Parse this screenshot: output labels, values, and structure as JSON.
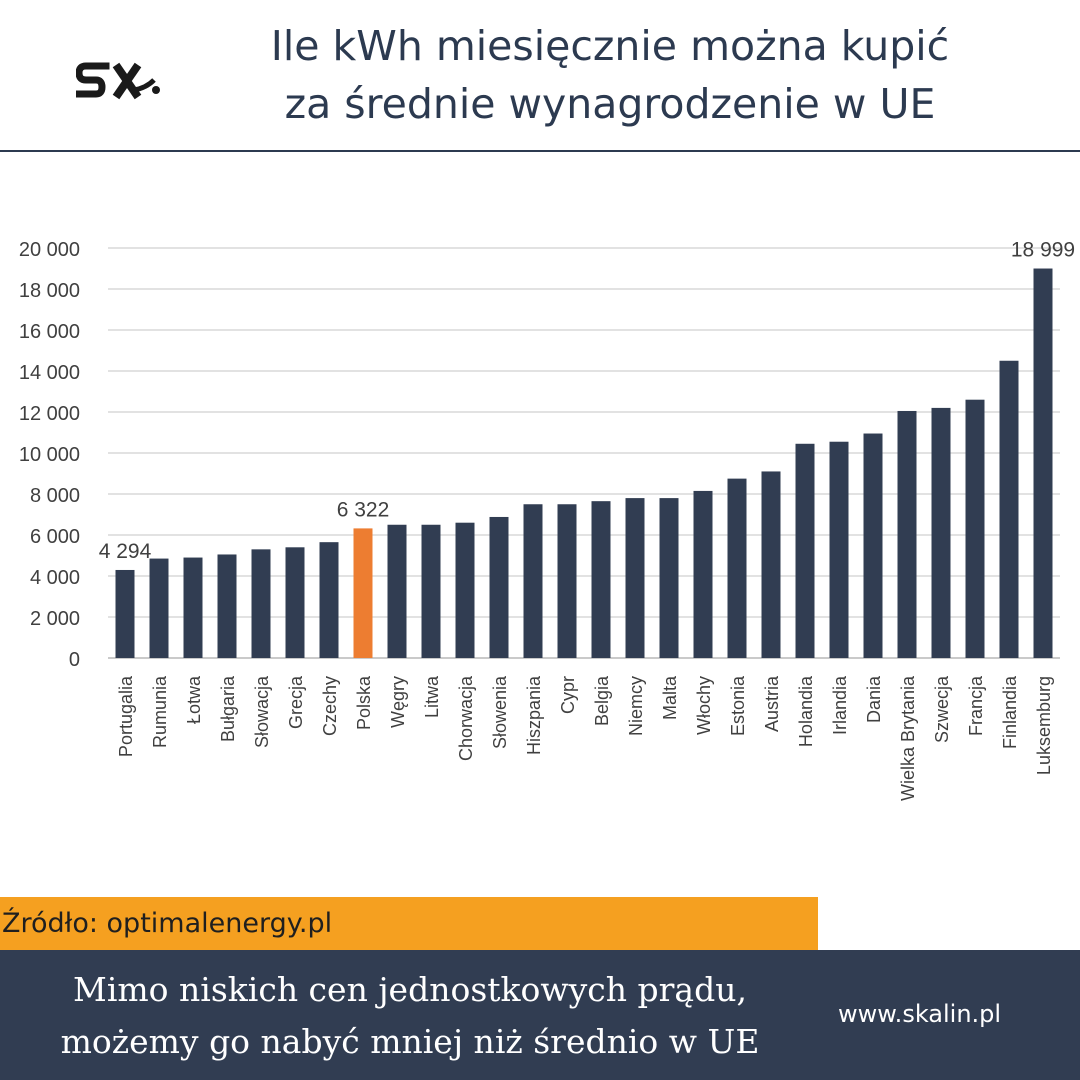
{
  "header": {
    "title_line1": "Ile kWh miesięcznie można kupić",
    "title_line2": "za średnie wynagrodzenie w UE",
    "logo": "skalin-logo"
  },
  "chart_data": {
    "type": "bar",
    "title": "Ile kWh miesięcznie można kupić za średnie wynagrodzenie w UE",
    "categories": [
      "Portugalia",
      "Rumunia",
      "Łotwa",
      "Bułgaria",
      "Słowacja",
      "Grecja",
      "Czechy",
      "Polska",
      "Węgry",
      "Litwa",
      "Chorwacja",
      "Słowenia",
      "Hiszpania",
      "Cypr",
      "Belgia",
      "Niemcy",
      "Malta",
      "Włochy",
      "Estonia",
      "Austria",
      "Holandia",
      "Irlandia",
      "Dania",
      "Wielka Brytania",
      "Szwecja",
      "Francja",
      "Finlandia",
      "Luksemburg"
    ],
    "values": [
      4294,
      4850,
      4900,
      5050,
      5300,
      5400,
      5650,
      6322,
      6500,
      6500,
      6600,
      6880,
      7500,
      7500,
      7650,
      7800,
      7800,
      8150,
      8750,
      9100,
      10450,
      10550,
      10950,
      12050,
      12200,
      12600,
      14500,
      18999
    ],
    "highlight": "Polska",
    "data_labels": {
      "Portugalia": "4 294",
      "Polska": "6 322",
      "Luksemburg": "18 999"
    },
    "yticks": [
      "0",
      "2 000",
      "4 000",
      "6 000",
      "8 000",
      "10 000",
      "12 000",
      "14 000",
      "16 000",
      "18 000",
      "20 000"
    ],
    "ylim": [
      0,
      20000
    ],
    "grid": true,
    "colors": {
      "bar": "#313d52",
      "highlight": "#ed7d31",
      "grid": "#d9d9d9",
      "text": "#404040"
    }
  },
  "source": {
    "text": "Źródło: optimalenergy.pl"
  },
  "footer": {
    "message_line1": "Mimo niskich cen jednostkowych prądu,",
    "message_line2": "możemy go nabyć mniej niż średnio w UE",
    "site": "www.skalin.pl"
  }
}
